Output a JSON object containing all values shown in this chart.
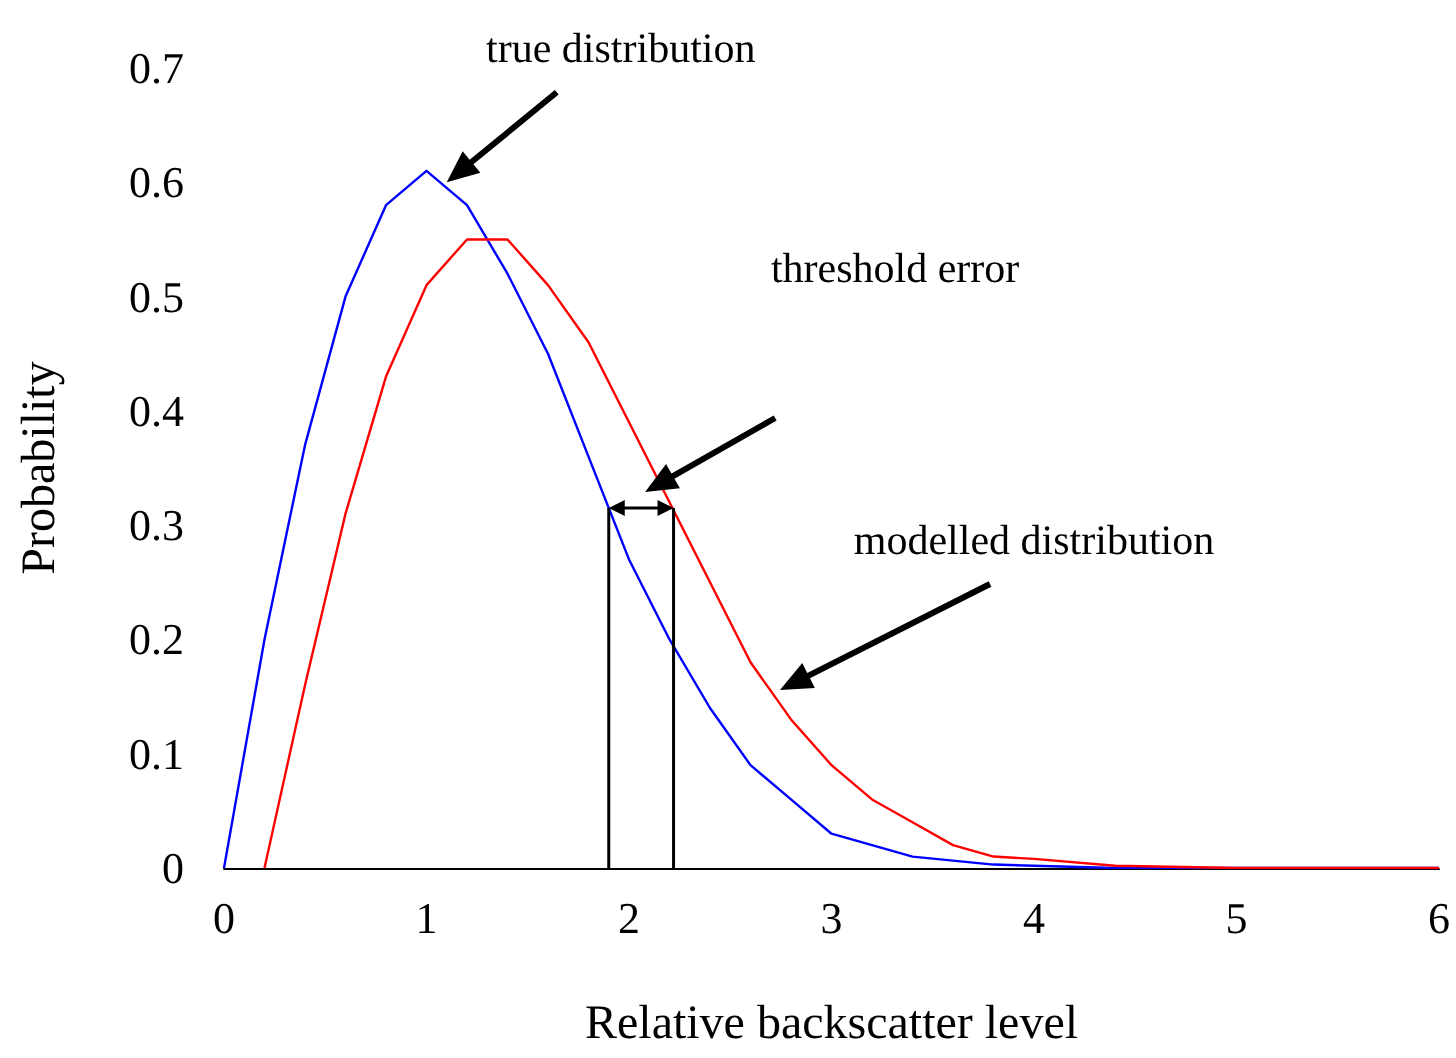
{
  "chart_data": {
    "type": "line",
    "xlabel": "Relative backscatter level",
    "ylabel": "Probability",
    "xlim": [
      0,
      6
    ],
    "xticks": [
      0,
      1,
      2,
      3,
      4,
      5,
      6
    ],
    "ylim": [
      0,
      0.7
    ],
    "yticks": [
      0,
      0.1,
      0.2,
      0.3,
      0.4,
      0.5,
      0.6,
      0.7
    ],
    "grid": false,
    "marker": "none",
    "line_style": "solid",
    "series": [
      {
        "color": "#0000ff",
        "x": [
          0,
          0.2,
          0.4,
          0.6,
          0.8,
          1.0,
          1.2,
          1.4,
          1.6,
          1.8,
          2.0,
          2.2,
          2.4,
          2.6,
          2.8,
          3.0,
          3.4,
          3.8,
          4.4,
          6
        ],
        "values": [
          0,
          0.2,
          0.37,
          0.5,
          0.58,
          0.61,
          0.58,
          0.52,
          0.45,
          0.36,
          0.27,
          0.2,
          0.14,
          0.09,
          0.06,
          0.03,
          0.01,
          0.003,
          0,
          0
        ]
      },
      {
        "color": "#ff0000",
        "x": [
          0.2,
          0.4,
          0.6,
          0.8,
          1.0,
          1.2,
          1.4,
          1.6,
          1.8,
          2.0,
          2.2,
          2.4,
          2.6,
          2.8,
          3.0,
          3.2,
          3.4,
          3.6,
          3.8,
          4.0,
          4.4,
          5,
          6
        ],
        "values": [
          0,
          0.16,
          0.31,
          0.43,
          0.51,
          0.55,
          0.55,
          0.51,
          0.46,
          0.39,
          0.32,
          0.25,
          0.18,
          0.13,
          0.09,
          0.06,
          0.04,
          0.02,
          0.01,
          0.008,
          0.002,
          0,
          0
        ]
      }
    ],
    "ref_lines": [
      {
        "axis": "x",
        "value": 1.9,
        "color": "#000000"
      },
      {
        "axis": "x",
        "value": 2.22,
        "color": "#000000"
      }
    ],
    "annotations": [
      {
        "text": "true distribution",
        "x": 1.1,
        "y": 0.6
      },
      "threshold error",
      "modelled distribution"
    ]
  }
}
